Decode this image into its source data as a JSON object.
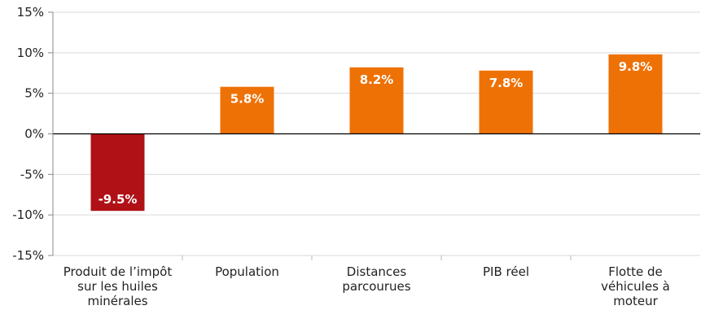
{
  "chart_data": {
    "type": "bar",
    "categories": [
      [
        "Produit de l’impôt",
        "sur les huiles",
        "minérales"
      ],
      [
        "Population"
      ],
      [
        "Distances",
        "parcourues"
      ],
      [
        "PIB réel"
      ],
      [
        "Flotte de",
        "véhicules à",
        "moteur"
      ]
    ],
    "values": [
      -9.5,
      5.8,
      8.2,
      7.8,
      9.8
    ],
    "data_labels": [
      "-9.5%",
      "5.8%",
      "8.2%",
      "7.8%",
      "9.8%"
    ],
    "bar_colors": [
      "#b01116",
      "#ee7106",
      "#ee7106",
      "#ee7106",
      "#ee7106"
    ],
    "ylim": [
      -15,
      15
    ],
    "yticks": [
      15,
      10,
      5,
      0,
      -5,
      -10,
      -15
    ],
    "ytick_labels": [
      "15%",
      "10%",
      "5%",
      "0%",
      "-5%",
      "-10%",
      "-15%"
    ],
    "grid": true,
    "colors": {
      "grid": "#d9d9d9",
      "axis": "#000000",
      "text": "#222222"
    }
  }
}
